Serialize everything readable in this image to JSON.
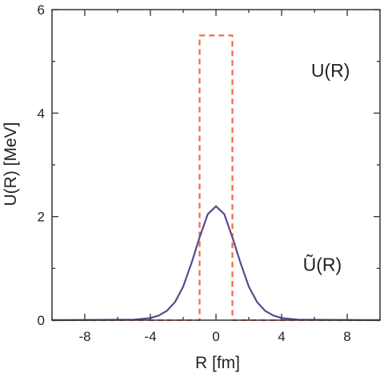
{
  "chart_data": {
    "type": "line",
    "title": "",
    "xlabel": "R [fm]",
    "ylabel": "U(R)  [MeV]",
    "xlim": [
      -10,
      10
    ],
    "ylim": [
      0,
      6
    ],
    "xticks": [
      -8,
      -4,
      0,
      4,
      8
    ],
    "yticks": [
      0,
      2,
      4,
      6
    ],
    "grid": false,
    "series": [
      {
        "name": "U(R)",
        "style": "dashed",
        "color": "#f26a3a",
        "x": [
          -10,
          -1,
          -1,
          1,
          1,
          10
        ],
        "y": [
          0,
          0,
          5.5,
          5.5,
          0,
          0
        ]
      },
      {
        "name": "Ũ(R)",
        "style": "solid",
        "color": "#5b4a8b",
        "x": [
          -10,
          -5,
          -4,
          -3.5,
          -3,
          -2.5,
          -2,
          -1.5,
          -1,
          -0.5,
          0,
          0.5,
          1,
          1.5,
          2,
          2.5,
          3,
          3.5,
          4,
          5,
          10
        ],
        "y": [
          0,
          0.01,
          0.04,
          0.09,
          0.18,
          0.35,
          0.65,
          1.1,
          1.6,
          2.05,
          2.2,
          2.05,
          1.6,
          1.1,
          0.65,
          0.35,
          0.18,
          0.09,
          0.04,
          0.01,
          0
        ]
      }
    ],
    "annotations": [
      {
        "text": "U(R)",
        "x": 5.8,
        "y": 4.7
      },
      {
        "text": "Ũ(R)",
        "x": 5.3,
        "y": 0.95
      }
    ]
  }
}
